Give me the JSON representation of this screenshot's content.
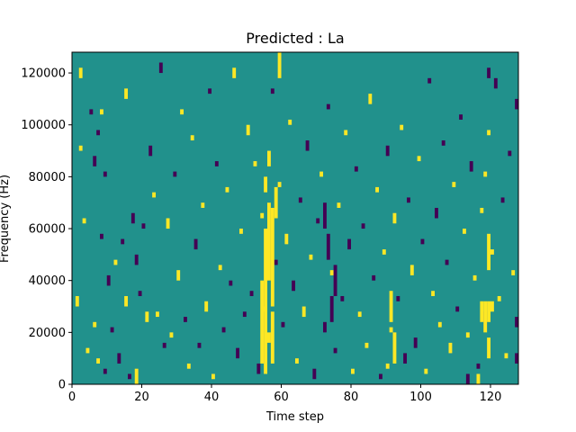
{
  "chart_data": {
    "type": "heatmap",
    "title": "Predicted : La",
    "xlabel": "Time step",
    "ylabel": "Frequency (Hz)",
    "xlim": [
      0,
      128
    ],
    "ylim": [
      0,
      128000
    ],
    "x_ticks": [
      0,
      20,
      40,
      60,
      80,
      100,
      120
    ],
    "x_tick_labels": [
      "0",
      "20",
      "40",
      "60",
      "80",
      "100",
      "120"
    ],
    "y_ticks": [
      0,
      20000,
      40000,
      60000,
      80000,
      100000,
      120000
    ],
    "y_tick_labels": [
      "0",
      "20000",
      "40000",
      "60000",
      "80000",
      "100000",
      "120000"
    ],
    "n_time_steps": 128,
    "n_freq_bins": 64,
    "bin_height_hz": 2000,
    "colormap": "viridis",
    "levels": [
      {
        "value": -1,
        "color": "#440154"
      },
      {
        "value": 0,
        "color": "#21918c"
      },
      {
        "value": 1,
        "color": "#fde725"
      }
    ],
    "background_value": 0,
    "grid": false,
    "legend": "none",
    "cells": [
      {
        "t": 1,
        "f0": 30000,
        "f1": 34000,
        "v": 1
      },
      {
        "t": 2,
        "f0": 118000,
        "f1": 122000,
        "v": 1
      },
      {
        "t": 2,
        "f0": 90000,
        "f1": 92000,
        "v": 1
      },
      {
        "t": 3,
        "f0": 62000,
        "f1": 64000,
        "v": 1
      },
      {
        "t": 4,
        "f0": 12000,
        "f1": 14000,
        "v": 1
      },
      {
        "t": 5,
        "f0": 104000,
        "f1": 106000,
        "v": -1
      },
      {
        "t": 6,
        "f0": 84000,
        "f1": 88000,
        "v": -1
      },
      {
        "t": 6,
        "f0": 22000,
        "f1": 24000,
        "v": 1
      },
      {
        "t": 7,
        "f0": 96000,
        "f1": 98000,
        "v": -1
      },
      {
        "t": 7,
        "f0": 8000,
        "f1": 10000,
        "v": 1
      },
      {
        "t": 8,
        "f0": 56000,
        "f1": 58000,
        "v": -1
      },
      {
        "t": 8,
        "f0": 104000,
        "f1": 106000,
        "v": 1
      },
      {
        "t": 9,
        "f0": 80000,
        "f1": 82000,
        "v": -1
      },
      {
        "t": 9,
        "f0": 4000,
        "f1": 6000,
        "v": -1
      },
      {
        "t": 10,
        "f0": 38000,
        "f1": 42000,
        "v": -1
      },
      {
        "t": 11,
        "f0": 20000,
        "f1": 22000,
        "v": -1
      },
      {
        "t": 12,
        "f0": 46000,
        "f1": 48000,
        "v": 1
      },
      {
        "t": 13,
        "f0": 8000,
        "f1": 12000,
        "v": -1
      },
      {
        "t": 14,
        "f0": 54000,
        "f1": 56000,
        "v": -1
      },
      {
        "t": 15,
        "f0": 30000,
        "f1": 34000,
        "v": 1
      },
      {
        "t": 15,
        "f0": 110000,
        "f1": 114000,
        "v": 1
      },
      {
        "t": 16,
        "f0": 2000,
        "f1": 4000,
        "v": -1
      },
      {
        "t": 17,
        "f0": 62000,
        "f1": 66000,
        "v": -1
      },
      {
        "t": 18,
        "f0": 0,
        "f1": 6000,
        "v": 1
      },
      {
        "t": 18,
        "f0": 46000,
        "f1": 50000,
        "v": -1
      },
      {
        "t": 19,
        "f0": 34000,
        "f1": 36000,
        "v": -1
      },
      {
        "t": 20,
        "f0": 60000,
        "f1": 62000,
        "v": -1
      },
      {
        "t": 21,
        "f0": 24000,
        "f1": 28000,
        "v": 1
      },
      {
        "t": 22,
        "f0": 88000,
        "f1": 92000,
        "v": -1
      },
      {
        "t": 23,
        "f0": 72000,
        "f1": 74000,
        "v": 1
      },
      {
        "t": 24,
        "f0": 26000,
        "f1": 28000,
        "v": 1
      },
      {
        "t": 25,
        "f0": 120000,
        "f1": 124000,
        "v": -1
      },
      {
        "t": 26,
        "f0": 14000,
        "f1": 16000,
        "v": -1
      },
      {
        "t": 27,
        "f0": 60000,
        "f1": 64000,
        "v": 1
      },
      {
        "t": 28,
        "f0": 18000,
        "f1": 20000,
        "v": 1
      },
      {
        "t": 29,
        "f0": 80000,
        "f1": 82000,
        "v": -1
      },
      {
        "t": 30,
        "f0": 40000,
        "f1": 44000,
        "v": 1
      },
      {
        "t": 31,
        "f0": 104000,
        "f1": 106000,
        "v": 1
      },
      {
        "t": 32,
        "f0": 24000,
        "f1": 26000,
        "v": -1
      },
      {
        "t": 33,
        "f0": 6000,
        "f1": 8000,
        "v": 1
      },
      {
        "t": 34,
        "f0": 94000,
        "f1": 96000,
        "v": 1
      },
      {
        "t": 35,
        "f0": 52000,
        "f1": 56000,
        "v": -1
      },
      {
        "t": 36,
        "f0": 14000,
        "f1": 16000,
        "v": -1
      },
      {
        "t": 37,
        "f0": 68000,
        "f1": 70000,
        "v": 1
      },
      {
        "t": 38,
        "f0": 28000,
        "f1": 32000,
        "v": 1
      },
      {
        "t": 39,
        "f0": 112000,
        "f1": 114000,
        "v": -1
      },
      {
        "t": 40,
        "f0": 2000,
        "f1": 4000,
        "v": 1
      },
      {
        "t": 41,
        "f0": 84000,
        "f1": 86000,
        "v": -1
      },
      {
        "t": 42,
        "f0": 44000,
        "f1": 46000,
        "v": 1
      },
      {
        "t": 43,
        "f0": 20000,
        "f1": 22000,
        "v": -1
      },
      {
        "t": 44,
        "f0": 74000,
        "f1": 76000,
        "v": 1
      },
      {
        "t": 45,
        "f0": 38000,
        "f1": 40000,
        "v": -1
      },
      {
        "t": 46,
        "f0": 118000,
        "f1": 122000,
        "v": 1
      },
      {
        "t": 47,
        "f0": 10000,
        "f1": 14000,
        "v": -1
      },
      {
        "t": 48,
        "f0": 58000,
        "f1": 60000,
        "v": 1
      },
      {
        "t": 49,
        "f0": 26000,
        "f1": 28000,
        "v": -1
      },
      {
        "t": 50,
        "f0": 96000,
        "f1": 100000,
        "v": 1
      },
      {
        "t": 51,
        "f0": 34000,
        "f1": 36000,
        "v": -1
      },
      {
        "t": 52,
        "f0": 84000,
        "f1": 86000,
        "v": 1
      },
      {
        "t": 53,
        "f0": 4000,
        "f1": 8000,
        "v": -1
      },
      {
        "t": 54,
        "f0": 64000,
        "f1": 66000,
        "v": 1
      },
      {
        "t": 55,
        "f0": 28000,
        "f1": 30000,
        "v": 1
      },
      {
        "t": 56,
        "f0": 16000,
        "f1": 20000,
        "v": 1
      },
      {
        "t": 57,
        "f0": 112000,
        "f1": 114000,
        "v": -1
      },
      {
        "t": 58,
        "f0": 46000,
        "f1": 48000,
        "v": -1
      },
      {
        "t": 59,
        "f0": 76000,
        "f1": 78000,
        "v": 1
      },
      {
        "t": 60,
        "f0": 22000,
        "f1": 24000,
        "v": -1
      },
      {
        "t": 61,
        "f0": 54000,
        "f1": 58000,
        "v": 1
      },
      {
        "t": 62,
        "f0": 100000,
        "f1": 102000,
        "v": 1
      },
      {
        "t": 63,
        "f0": 36000,
        "f1": 40000,
        "v": -1
      },
      {
        "t": 64,
        "f0": 8000,
        "f1": 10000,
        "v": 1
      },
      {
        "t": 65,
        "f0": 70000,
        "f1": 72000,
        "v": -1
      },
      {
        "t": 66,
        "f0": 26000,
        "f1": 30000,
        "v": 1
      },
      {
        "t": 67,
        "f0": 90000,
        "f1": 94000,
        "v": -1
      },
      {
        "t": 68,
        "f0": 48000,
        "f1": 50000,
        "v": 1
      },
      {
        "t": 69,
        "f0": 2000,
        "f1": 6000,
        "v": -1
      },
      {
        "t": 70,
        "f0": 62000,
        "f1": 64000,
        "v": -1
      },
      {
        "t": 71,
        "f0": 80000,
        "f1": 82000,
        "v": 1
      },
      {
        "t": 72,
        "f0": 20000,
        "f1": 24000,
        "v": -1
      },
      {
        "t": 73,
        "f0": 106000,
        "f1": 108000,
        "v": -1
      },
      {
        "t": 74,
        "f0": 42000,
        "f1": 44000,
        "v": 1
      },
      {
        "t": 75,
        "f0": 12000,
        "f1": 14000,
        "v": -1
      },
      {
        "t": 76,
        "f0": 68000,
        "f1": 70000,
        "v": 1
      },
      {
        "t": 77,
        "f0": 32000,
        "f1": 34000,
        "v": -1
      },
      {
        "t": 78,
        "f0": 96000,
        "f1": 98000,
        "v": 1
      },
      {
        "t": 79,
        "f0": 52000,
        "f1": 56000,
        "v": -1
      },
      {
        "t": 80,
        "f0": 4000,
        "f1": 6000,
        "v": 1
      },
      {
        "t": 81,
        "f0": 82000,
        "f1": 84000,
        "v": -1
      },
      {
        "t": 82,
        "f0": 26000,
        "f1": 28000,
        "v": 1
      },
      {
        "t": 83,
        "f0": 60000,
        "f1": 62000,
        "v": -1
      },
      {
        "t": 84,
        "f0": 14000,
        "f1": 16000,
        "v": 1
      },
      {
        "t": 85,
        "f0": 108000,
        "f1": 112000,
        "v": 1
      },
      {
        "t": 86,
        "f0": 40000,
        "f1": 42000,
        "v": -1
      },
      {
        "t": 87,
        "f0": 74000,
        "f1": 76000,
        "v": 1
      },
      {
        "t": 88,
        "f0": 2000,
        "f1": 4000,
        "v": -1
      },
      {
        "t": 89,
        "f0": 50000,
        "f1": 52000,
        "v": 1
      },
      {
        "t": 90,
        "f0": 88000,
        "f1": 92000,
        "v": -1
      },
      {
        "t": 91,
        "f0": 20000,
        "f1": 22000,
        "v": 1
      },
      {
        "t": 92,
        "f0": 62000,
        "f1": 66000,
        "v": 1
      },
      {
        "t": 93,
        "f0": 32000,
        "f1": 34000,
        "v": -1
      },
      {
        "t": 94,
        "f0": 98000,
        "f1": 100000,
        "v": 1
      },
      {
        "t": 95,
        "f0": 8000,
        "f1": 12000,
        "v": -1
      },
      {
        "t": 96,
        "f0": 70000,
        "f1": 72000,
        "v": -1
      },
      {
        "t": 97,
        "f0": 42000,
        "f1": 46000,
        "v": 1
      },
      {
        "t": 98,
        "f0": 14000,
        "f1": 18000,
        "v": -1
      },
      {
        "t": 99,
        "f0": 86000,
        "f1": 88000,
        "v": 1
      },
      {
        "t": 100,
        "f0": 54000,
        "f1": 56000,
        "v": -1
      },
      {
        "t": 101,
        "f0": 4000,
        "f1": 6000,
        "v": 1
      },
      {
        "t": 102,
        "f0": 116000,
        "f1": 118000,
        "v": -1
      },
      {
        "t": 103,
        "f0": 34000,
        "f1": 36000,
        "v": 1
      },
      {
        "t": 104,
        "f0": 64000,
        "f1": 68000,
        "v": -1
      },
      {
        "t": 105,
        "f0": 22000,
        "f1": 24000,
        "v": 1
      },
      {
        "t": 106,
        "f0": 92000,
        "f1": 94000,
        "v": -1
      },
      {
        "t": 107,
        "f0": 46000,
        "f1": 48000,
        "v": -1
      },
      {
        "t": 108,
        "f0": 12000,
        "f1": 16000,
        "v": 1
      },
      {
        "t": 109,
        "f0": 76000,
        "f1": 78000,
        "v": 1
      },
      {
        "t": 110,
        "f0": 28000,
        "f1": 30000,
        "v": -1
      },
      {
        "t": 111,
        "f0": 102000,
        "f1": 104000,
        "v": -1
      },
      {
        "t": 112,
        "f0": 58000,
        "f1": 60000,
        "v": 1
      },
      {
        "t": 113,
        "f0": 18000,
        "f1": 20000,
        "v": 1
      },
      {
        "t": 114,
        "f0": 82000,
        "f1": 86000,
        "v": -1
      },
      {
        "t": 115,
        "f0": 40000,
        "f1": 42000,
        "v": 1
      },
      {
        "t": 116,
        "f0": 6000,
        "f1": 8000,
        "v": -1
      },
      {
        "t": 117,
        "f0": 66000,
        "f1": 68000,
        "v": 1
      },
      {
        "t": 118,
        "f0": 24000,
        "f1": 28000,
        "v": -1
      },
      {
        "t": 119,
        "f0": 96000,
        "f1": 98000,
        "v": 1
      },
      {
        "t": 120,
        "f0": 50000,
        "f1": 52000,
        "v": 1
      },
      {
        "t": 121,
        "f0": 114000,
        "f1": 118000,
        "v": -1
      },
      {
        "t": 122,
        "f0": 32000,
        "f1": 34000,
        "v": 1
      },
      {
        "t": 123,
        "f0": 70000,
        "f1": 72000,
        "v": -1
      },
      {
        "t": 124,
        "f0": 10000,
        "f1": 12000,
        "v": 1
      },
      {
        "t": 125,
        "f0": 88000,
        "f1": 90000,
        "v": -1
      },
      {
        "t": 126,
        "f0": 42000,
        "f1": 44000,
        "v": 1
      },
      {
        "t": 127,
        "f0": 22000,
        "f1": 26000,
        "v": -1
      },
      {
        "t": 54,
        "f0": 8000,
        "f1": 40000,
        "v": 1
      },
      {
        "t": 55,
        "f0": 4000,
        "f1": 60000,
        "v": 1
      },
      {
        "t": 56,
        "f0": 40000,
        "f1": 70000,
        "v": 1
      },
      {
        "t": 57,
        "f0": 30000,
        "f1": 68000,
        "v": 1
      },
      {
        "t": 55,
        "f0": 74000,
        "f1": 80000,
        "v": 1
      },
      {
        "t": 56,
        "f0": 84000,
        "f1": 90000,
        "v": 1
      },
      {
        "t": 57,
        "f0": 8000,
        "f1": 28000,
        "v": 1
      },
      {
        "t": 58,
        "f0": 64000,
        "f1": 76000,
        "v": 1
      },
      {
        "t": 59,
        "f0": 118000,
        "f1": 128000,
        "v": 1
      },
      {
        "t": 74,
        "f0": 24000,
        "f1": 34000,
        "v": -1
      },
      {
        "t": 75,
        "f0": 34000,
        "f1": 46000,
        "v": -1
      },
      {
        "t": 73,
        "f0": 48000,
        "f1": 58000,
        "v": -1
      },
      {
        "t": 72,
        "f0": 60000,
        "f1": 70000,
        "v": -1
      },
      {
        "t": 91,
        "f0": 24000,
        "f1": 36000,
        "v": 1
      },
      {
        "t": 90,
        "f0": 6000,
        "f1": 8000,
        "v": 1
      },
      {
        "t": 92,
        "f0": 8000,
        "f1": 20000,
        "v": 1
      },
      {
        "t": 116,
        "f0": 0,
        "f1": 4000,
        "v": 1
      },
      {
        "t": 113,
        "f0": 0,
        "f1": 4000,
        "v": -1
      },
      {
        "t": 117,
        "f0": 24000,
        "f1": 32000,
        "v": 1
      },
      {
        "t": 118,
        "f0": 20000,
        "f1": 32000,
        "v": 1
      },
      {
        "t": 119,
        "f0": 24000,
        "f1": 32000,
        "v": 1
      },
      {
        "t": 119,
        "f0": 44000,
        "f1": 58000,
        "v": 1
      },
      {
        "t": 119,
        "f0": 10000,
        "f1": 18000,
        "v": 1
      },
      {
        "t": 120,
        "f0": 28000,
        "f1": 32000,
        "v": 1
      },
      {
        "t": 118,
        "f0": 80000,
        "f1": 82000,
        "v": 1
      },
      {
        "t": 127,
        "f0": 106000,
        "f1": 110000,
        "v": -1
      },
      {
        "t": 119,
        "f0": 118000,
        "f1": 122000,
        "v": -1
      },
      {
        "t": 127,
        "f0": 8000,
        "f1": 12000,
        "v": -1
      }
    ]
  }
}
